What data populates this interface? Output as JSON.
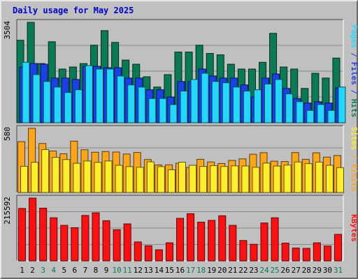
{
  "title": "Daily usage for May 2025",
  "colors": {
    "hits": "#0a7a55",
    "files": "#1a40e8",
    "pages": "#22d8ff",
    "visits": "#ffa51a",
    "sites": "#ffee2a",
    "kbytes": "#ff1010",
    "day_weekday": "#000000",
    "day_weekend": "#0a7a55",
    "sep_blue": "#1a40e8",
    "sep_orange": "#ffa51a"
  },
  "chart_data": [
    {
      "type": "bar",
      "title": "Daily usage for May 2025",
      "categories": [
        "1",
        "2",
        "3",
        "4",
        "5",
        "6",
        "7",
        "8",
        "9",
        "10",
        "11",
        "12",
        "13",
        "14",
        "15",
        "16",
        "17",
        "18",
        "19",
        "20",
        "21",
        "22",
        "23",
        "24",
        "25",
        "26",
        "27",
        "28",
        "29",
        "30",
        "31"
      ],
      "weekend_days": [
        "3",
        "4",
        "10",
        "11",
        "17",
        "18",
        "24",
        "25",
        "31"
      ],
      "ymax_label": "3504",
      "ylim": [
        0,
        3504
      ],
      "right_label": {
        "parts": [
          "Pages",
          "Files",
          "Hits"
        ],
        "sep": " / "
      },
      "series": [
        {
          "name": "Hits",
          "values": [
            2878,
            3504,
            2066,
            2827,
            1874,
            1946,
            2066,
            2707,
            3215,
            2803,
            2187,
            2043,
            1605,
            1246,
            1680,
            2467,
            2467,
            2707,
            2419,
            2371,
            2043,
            1874,
            1874,
            2110,
            3120,
            1946,
            1874,
            1198,
            1726,
            1560,
            2258
          ]
        },
        {
          "name": "Files",
          "values": [
            1946,
            2066,
            2043,
            1560,
            1560,
            1511,
            1968,
            1968,
            1921,
            1921,
            1560,
            1560,
            1151,
            1151,
            901,
            1440,
            1440,
            1874,
            1633,
            1560,
            1560,
            1320,
            901,
            1560,
            1702,
            1198,
            846,
            689,
            735,
            689,
            1221
          ]
        },
        {
          "name": "Pages",
          "values": [
            2110,
            1680,
            1440,
            1246,
            1055,
            1151,
            1992,
            1874,
            1874,
            1633,
            1320,
            1246,
            846,
            846,
            635,
            1105,
            1511,
            1727,
            1440,
            1394,
            1246,
            1105,
            1151,
            1350,
            1511,
            1008,
            736,
            431,
            635,
            431,
            1246
          ]
        }
      ]
    },
    {
      "type": "bar",
      "categories": [
        "1",
        "2",
        "3",
        "4",
        "5",
        "6",
        "7",
        "8",
        "9",
        "10",
        "11",
        "12",
        "13",
        "14",
        "15",
        "16",
        "17",
        "18",
        "19",
        "20",
        "21",
        "22",
        "23",
        "24",
        "25",
        "26",
        "27",
        "28",
        "29",
        "30",
        "31"
      ],
      "ymax_label": "580",
      "ylim": [
        0,
        580
      ],
      "right_label": {
        "parts": [
          "Sites",
          "Visits"
        ],
        "sep": " / "
      },
      "series": [
        {
          "name": "Visits",
          "values": [
            460,
            580,
            443,
            375,
            350,
            464,
            386,
            364,
            370,
            366,
            348,
            362,
            298,
            249,
            250,
            265,
            226,
            300,
            276,
            262,
            290,
            304,
            346,
            360,
            283,
            280,
            361,
            300,
            359,
            320,
            334
          ]
        },
        {
          "name": "Sites",
          "values": [
            237,
            273,
            388,
            318,
            298,
            264,
            285,
            272,
            285,
            246,
            234,
            228,
            277,
            234,
            206,
            274,
            246,
            236,
            243,
            235,
            241,
            240,
            228,
            266,
            239,
            248,
            276,
            261,
            275,
            246,
            225
          ]
        }
      ]
    },
    {
      "type": "bar",
      "categories": [
        "1",
        "2",
        "3",
        "4",
        "5",
        "6",
        "7",
        "8",
        "9",
        "10",
        "11",
        "12",
        "13",
        "14",
        "15",
        "16",
        "17",
        "18",
        "19",
        "20",
        "21",
        "22",
        "23",
        "24",
        "25",
        "26",
        "27",
        "28",
        "29",
        "30",
        "31"
      ],
      "ymax_label": "215592",
      "ylim": [
        0,
        215592
      ],
      "right_label": {
        "parts": [
          "KBytes"
        ],
        "sep": ""
      },
      "series": [
        {
          "name": "KBytes",
          "values": [
            180000,
            215592,
            181000,
            148000,
            122000,
            114000,
            156000,
            165000,
            138000,
            107000,
            127000,
            65000,
            52000,
            38000,
            62000,
            146000,
            162000,
            133000,
            139000,
            155000,
            122000,
            70000,
            57000,
            130000,
            148000,
            61000,
            44000,
            43000,
            62000,
            51000,
            91000
          ]
        }
      ]
    }
  ]
}
